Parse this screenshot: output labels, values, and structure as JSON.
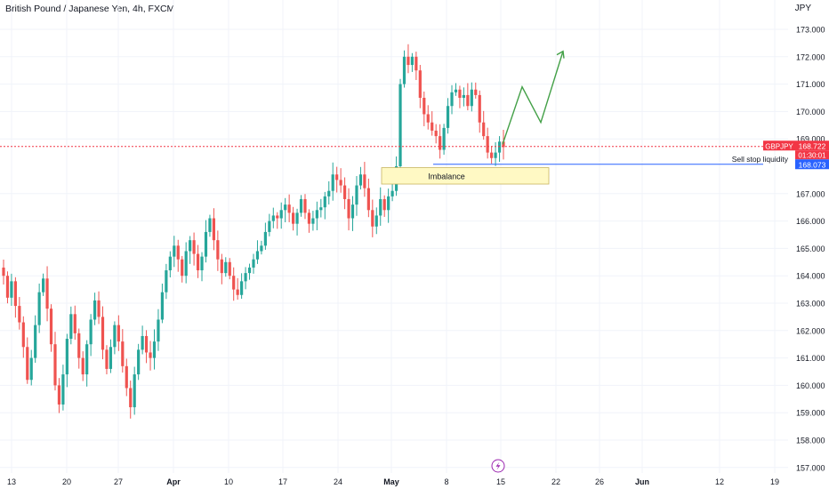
{
  "header": {
    "title": "British Pound / Japanese Yen, 4h, FXCM",
    "currency": "JPY"
  },
  "colors": {
    "up": "#26a69a",
    "down": "#ef5350",
    "grid": "#f0f3fa",
    "axis_text": "#131722",
    "price_line": "#f23645",
    "liquidity_line": "#2962ff",
    "imbalance_fill": "#fff9c4",
    "imbalance_border": "#c8b560",
    "projection": "#43a047",
    "lightning": "#9c27b0"
  },
  "price_axis": {
    "ticks": [
      {
        "value": 173,
        "label": "173.000"
      },
      {
        "value": 172,
        "label": "172.000"
      },
      {
        "value": 171,
        "label": "171.000"
      },
      {
        "value": 170,
        "label": "170.000"
      },
      {
        "value": 169,
        "label": "169.000"
      },
      {
        "value": 167,
        "label": "167.000"
      },
      {
        "value": 166,
        "label": "166.000"
      },
      {
        "value": 165,
        "label": "165.000"
      },
      {
        "value": 164,
        "label": "164.000"
      },
      {
        "value": 163,
        "label": "163.000"
      },
      {
        "value": 162,
        "label": "162.000"
      },
      {
        "value": 161,
        "label": "161.000"
      },
      {
        "value": 160,
        "label": "160.000"
      },
      {
        "value": 159,
        "label": "159.000"
      },
      {
        "value": 158,
        "label": "158.000"
      },
      {
        "value": 157,
        "label": "157.000"
      }
    ]
  },
  "time_axis": {
    "ticks": [
      {
        "label": "13",
        "bold": false
      },
      {
        "label": "20",
        "bold": false
      },
      {
        "label": "27",
        "bold": false
      },
      {
        "label": "Apr",
        "bold": true
      },
      {
        "label": "10",
        "bold": false
      },
      {
        "label": "17",
        "bold": false
      },
      {
        "label": "24",
        "bold": false
      },
      {
        "label": "May",
        "bold": true
      },
      {
        "label": "8",
        "bold": false
      },
      {
        "label": "15",
        "bold": false
      },
      {
        "label": "22",
        "bold": false
      },
      {
        "label": "26",
        "bold": false
      },
      {
        "label": "Jun",
        "bold": true
      },
      {
        "label": "12",
        "bold": false
      },
      {
        "label": "19",
        "bold": false
      }
    ]
  },
  "labels": {
    "symbol_tag": "GBPJPY",
    "current_price": "168.722",
    "countdown": "01:30:01",
    "liquidity_price": "168.073",
    "sell_stop_text": "Sell stop liquidity",
    "imbalance_text": "Imbalance"
  },
  "chart_data": {
    "type": "candlestick",
    "title": "British Pound / Japanese Yen, 4h, FXCM",
    "ylabel": "JPY",
    "ylim": [
      157,
      173.3
    ],
    "current_price": 168.722,
    "sell_stop_liquidity": 168.073,
    "imbalance_zone": {
      "from": 167.35,
      "to": 167.95
    },
    "projection_path": [
      168.8,
      170.9,
      169.6,
      172.2
    ],
    "series": [
      {
        "name": "GBPJPY",
        "closes": [
          164.0,
          163.2,
          163.8,
          162.9,
          162.3,
          161.4,
          160.2,
          161.0,
          162.2,
          163.4,
          163.9,
          162.8,
          161.5,
          160.0,
          159.3,
          160.4,
          161.7,
          162.6,
          161.9,
          161.0,
          160.4,
          161.5,
          162.4,
          163.1,
          162.5,
          161.3,
          160.6,
          161.4,
          162.2,
          161.6,
          160.7,
          159.9,
          159.2,
          160.4,
          161.3,
          161.8,
          161.2,
          161.0,
          161.6,
          162.4,
          163.4,
          164.2,
          164.7,
          165.1,
          164.6,
          164.0,
          164.9,
          165.3,
          164.8,
          164.2,
          164.7,
          165.6,
          166.1,
          165.3,
          164.6,
          164.1,
          164.5,
          164.0,
          163.5,
          163.3,
          163.8,
          164.1,
          164.3,
          164.6,
          164.9,
          165.1,
          165.6,
          166.0,
          166.2,
          166.1,
          166.4,
          166.6,
          166.3,
          165.9,
          166.3,
          166.8,
          166.3,
          165.9,
          166.1,
          166.4,
          166.5,
          166.9,
          167.1,
          167.7,
          167.5,
          167.3,
          166.8,
          166.1,
          166.6,
          167.3,
          167.7,
          167.2,
          166.4,
          165.8,
          166.2,
          166.8,
          166.4,
          166.9,
          167.1,
          168.0,
          171.0,
          172.0,
          171.7,
          172.0,
          171.5,
          170.5,
          169.9,
          169.6,
          169.3,
          169.1,
          168.6,
          169.4,
          170.2,
          170.7,
          170.8,
          170.5,
          170.6,
          170.2,
          170.8,
          170.6,
          169.6,
          169.1,
          168.5,
          168.3,
          168.5,
          168.9,
          168.7
        ]
      }
    ]
  }
}
